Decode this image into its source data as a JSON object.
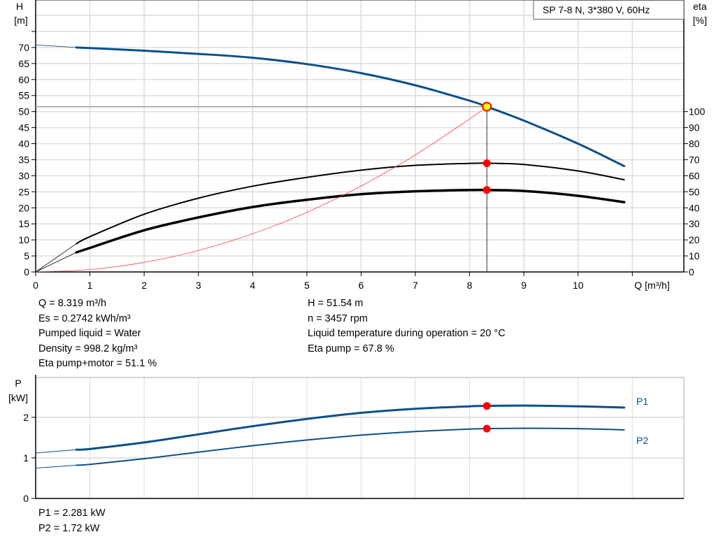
{
  "chart_data": [
    {
      "type": "line",
      "title": "SP 7-8 N, 3*380 V, 60Hz",
      "xlabel": "Q [m³/h]",
      "ylabel": "H",
      "ylabel_unit": "[m]",
      "y2label": "eta",
      "y2label_unit": "[%]",
      "xlim": [
        0,
        11.95
      ],
      "ylim": [
        0,
        84.8
      ],
      "y2lim": [
        0,
        169.6
      ],
      "grid": true,
      "x_ticks": [
        "0",
        "1",
        "2",
        "3",
        "4",
        "5",
        "6",
        "7",
        "8",
        "9",
        "10"
      ],
      "y_ticks": [
        "0",
        "5",
        "10",
        "15",
        "20",
        "25",
        "30",
        "35",
        "40",
        "45",
        "50",
        "55",
        "60",
        "65",
        "70"
      ],
      "y2_ticks": [
        "0",
        "10",
        "20",
        "30",
        "40",
        "50",
        "60",
        "70",
        "80",
        "90",
        "100"
      ],
      "series": [
        {
          "key": "H",
          "axis": "H",
          "color": "#0b4f8a",
          "width": 3,
          "x": [
            0,
            0.75,
            1,
            2,
            3,
            4,
            5,
            6,
            7,
            8,
            8.319,
            9,
            10,
            10.85
          ],
          "y": [
            70.8,
            70,
            69.8,
            69,
            68,
            66.8,
            64.8,
            62,
            58.2,
            53.4,
            51.54,
            47.2,
            40,
            33
          ]
        },
        {
          "key": "eta_pump",
          "axis": "eta",
          "color": "#000000",
          "width": 2,
          "x": [
            0,
            0.75,
            1,
            2,
            3,
            4,
            5,
            6,
            7,
            8,
            8.319,
            9,
            10,
            10.85
          ],
          "y": [
            0,
            17.6,
            22,
            36,
            46,
            53.5,
            59,
            63.5,
            66.5,
            67.7,
            67.8,
            67,
            63,
            57.5
          ]
        },
        {
          "key": "eta_pump_motor",
          "axis": "eta",
          "color": "#000000",
          "width": 3.5,
          "x": [
            0,
            0.75,
            1,
            2,
            3,
            4,
            5,
            6,
            7,
            8,
            8.319,
            9,
            10,
            10.85
          ],
          "y": [
            0,
            12.2,
            15,
            26,
            34,
            40.5,
            45,
            48.5,
            50.3,
            51.1,
            51.1,
            50.5,
            47.5,
            43.5
          ]
        },
        {
          "key": "system_curve",
          "axis": "H",
          "color": "#ff4040",
          "width": 0.8,
          "x": [
            0,
            1,
            2,
            3,
            4,
            5,
            6,
            7,
            8,
            8.319
          ],
          "y": [
            0,
            0.74,
            2.98,
            6.7,
            11.9,
            18.6,
            26.8,
            36.5,
            47.7,
            51.54
          ]
        }
      ],
      "duty_point": {
        "Q": 8.319,
        "H": 51.54,
        "eta_pump": 67.8,
        "eta_pump_motor": 51.1
      }
    },
    {
      "type": "line",
      "xlabel": "",
      "ylabel": "P",
      "ylabel_unit": "[kW]",
      "xlim": [
        0,
        11.95
      ],
      "ylim": [
        0,
        2.98
      ],
      "grid": true,
      "y_ticks": [
        "0",
        "1",
        "2"
      ],
      "series": [
        {
          "name": "P1",
          "color": "#0b4f8a",
          "width": 3,
          "x": [
            0,
            0.75,
            1,
            2,
            3,
            4,
            5,
            6,
            7,
            8,
            8.319,
            9,
            10,
            10.85
          ],
          "y": [
            1.12,
            1.2,
            1.22,
            1.38,
            1.58,
            1.78,
            1.96,
            2.11,
            2.21,
            2.27,
            2.281,
            2.29,
            2.27,
            2.24
          ]
        },
        {
          "name": "P2",
          "color": "#0b4f8a",
          "width": 2,
          "x": [
            0,
            0.75,
            1,
            2,
            3,
            4,
            5,
            6,
            7,
            8,
            8.319,
            9,
            10,
            10.85
          ],
          "y": [
            0.75,
            0.82,
            0.84,
            0.98,
            1.14,
            1.3,
            1.44,
            1.56,
            1.65,
            1.71,
            1.72,
            1.73,
            1.72,
            1.69
          ]
        }
      ],
      "duty_point": {
        "Q": 8.319,
        "P1": 2.281,
        "P2": 1.72
      }
    }
  ],
  "info": {
    "left": [
      "Q = 8.319 m³/h",
      "Es = 0.2742 kWh/m³",
      "Pumped liquid = Water",
      "Density = 998.2 kg/m³",
      "Eta pump+motor = 51.1 %"
    ],
    "right": [
      "H = 51.54 m",
      "n = 3457 rpm",
      "Liquid temperature during operation = 20 °C",
      "Eta pump = 67.8 %"
    ],
    "power": [
      "P1 = 2.281 kW",
      "P2 = 1.72 kW"
    ]
  },
  "colors": {
    "curve_blue": "#0b4f8a",
    "duty_point_fill": "#ffff00",
    "marker_red": "#ff0000",
    "grid": "#dcdcdc"
  }
}
